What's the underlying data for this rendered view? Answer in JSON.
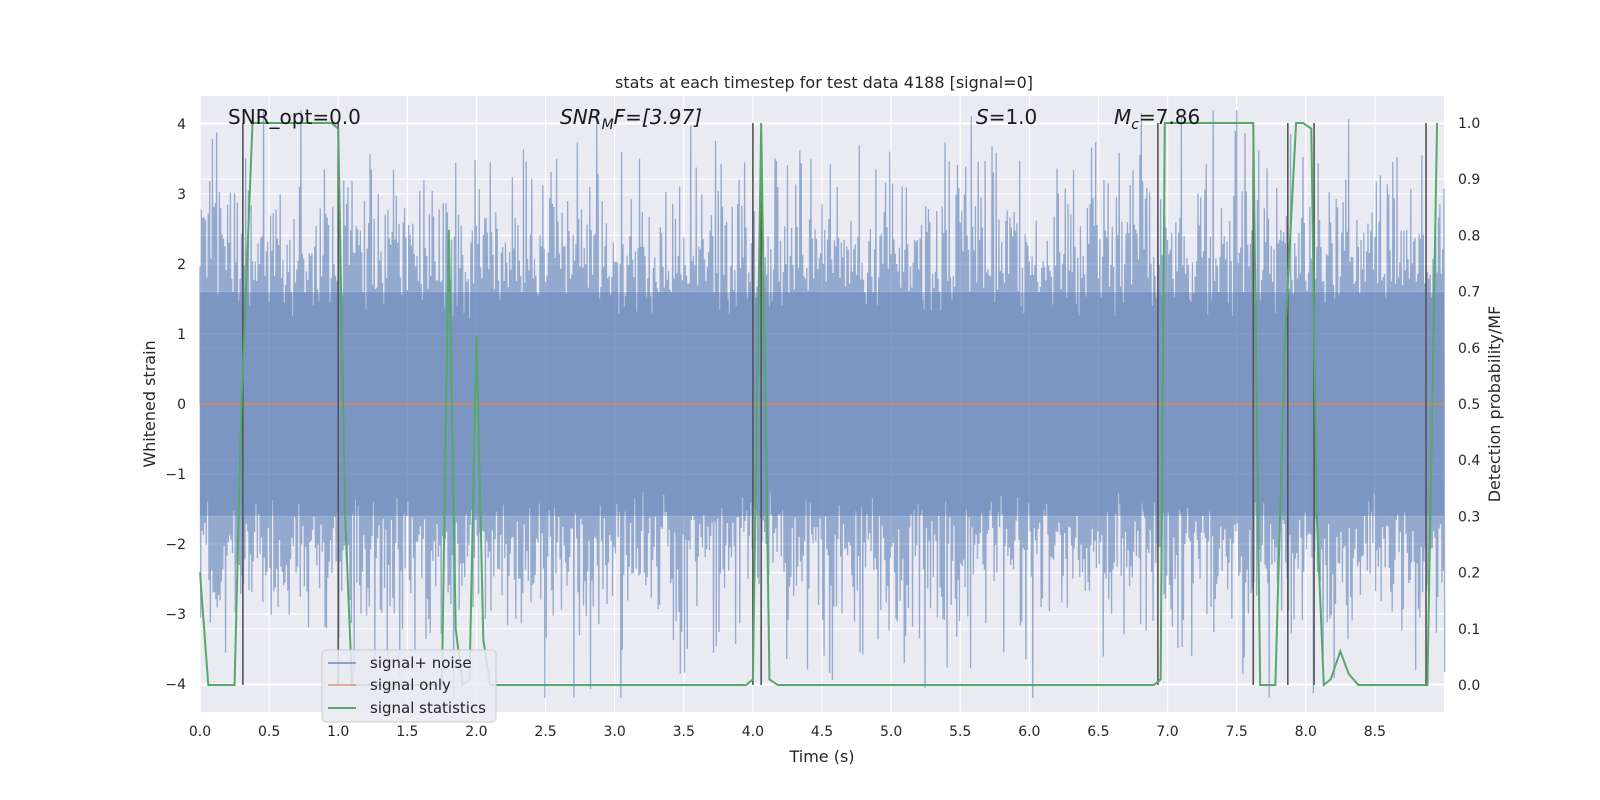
{
  "chart_data": {
    "type": "line",
    "title": "stats at each timestep for test data 4188 [signal=0]",
    "xlabel": "Time (s)",
    "ylabel": "Whitened strain",
    "ylabel_right": "Detection probability/MF",
    "xlim": [
      0.0,
      9.0
    ],
    "ylim": [
      -4.4,
      4.4
    ],
    "ylim_right": [
      -0.048,
      1.048
    ],
    "x_ticks": [
      "0.0",
      "0.5",
      "1.0",
      "1.5",
      "2.0",
      "2.5",
      "3.0",
      "3.5",
      "4.0",
      "4.5",
      "5.0",
      "5.5",
      "6.0",
      "6.5",
      "7.0",
      "7.5",
      "8.0",
      "8.5"
    ],
    "y_ticks": [
      "4",
      "3",
      "2",
      "1",
      "0",
      "−1",
      "−2",
      "−3",
      "−4"
    ],
    "y_ticks_right": [
      "1.0",
      "0.9",
      "0.8",
      "0.7",
      "0.6",
      "0.5",
      "0.4",
      "0.3",
      "0.2",
      "0.1",
      "0.0"
    ],
    "grid": true,
    "legend_position": "lower-left",
    "colors": {
      "noise": "#4c72b0",
      "signal": "#dd8452",
      "stats": "#55a868",
      "vline": "#555555",
      "background": "#eaeaf2",
      "grid": "#ffffff"
    },
    "annotations": [
      {
        "label": "SNR_opt=0.0",
        "math": false
      },
      {
        "label": "SNR",
        "sub": "M",
        "rest": "F=[3.97]",
        "math": true
      },
      {
        "label": "S",
        "rest": "=1.0",
        "math": true
      },
      {
        "label": "M",
        "sub": "c",
        "rest": "=7.86",
        "math": true
      }
    ],
    "series": [
      {
        "name": "signal+ noise",
        "note": "dense whitened noise trace, roughly ±2.5 with peaks to about ±4"
      },
      {
        "name": "signal only",
        "x": [
          0.0,
          9.0
        ],
        "y": [
          0.0,
          0.0
        ]
      },
      {
        "name": "signal statistics",
        "x": [
          0.0,
          0.06,
          0.25,
          0.3,
          0.38,
          0.95,
          1.0,
          1.05,
          1.1,
          1.75,
          1.8,
          1.85,
          1.9,
          1.95,
          2.0,
          2.05,
          2.1,
          2.18,
          3.95,
          4.0,
          4.06,
          4.12,
          4.18,
          6.9,
          6.95,
          6.98,
          7.62,
          7.67,
          7.72,
          7.78,
          7.85,
          7.93,
          7.98,
          8.04,
          8.08,
          8.13,
          8.18,
          8.25,
          8.31,
          8.38,
          8.88,
          8.95
        ],
        "y": [
          0.2,
          0.0,
          0.0,
          0.5,
          1.0,
          1.0,
          0.99,
          0.3,
          0.0,
          0.0,
          0.81,
          0.1,
          0.0,
          0.01,
          0.62,
          0.08,
          0.0,
          0.0,
          0.0,
          0.01,
          1.0,
          0.01,
          0.0,
          0.0,
          0.01,
          1.0,
          1.0,
          0.0,
          0.0,
          0.0,
          0.62,
          1.0,
          1.0,
          0.99,
          0.3,
          0.0,
          0.01,
          0.06,
          0.02,
          0.0,
          0.0,
          1.0
        ]
      },
      {
        "name": "vlines",
        "x": [
          0.31,
          1.0,
          4.0,
          4.06,
          6.93,
          7.62,
          7.87,
          8.06,
          8.87
        ]
      }
    ]
  }
}
